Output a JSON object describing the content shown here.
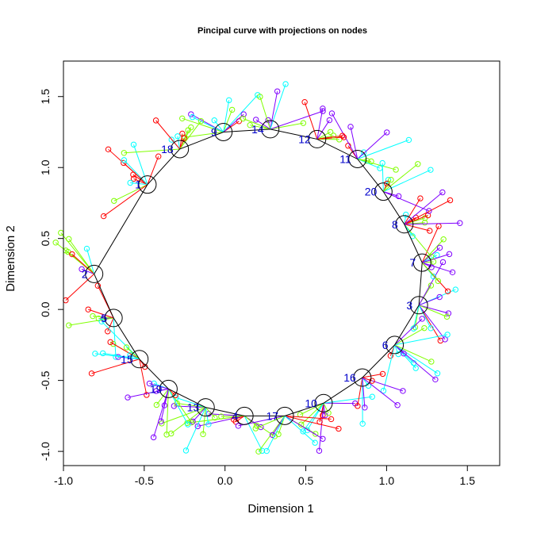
{
  "chart_data": {
    "type": "scatter",
    "title": "Pincipal curve with projections on nodes",
    "xlabel": "Dimension 1",
    "ylabel": "Dimension 2",
    "xlim": [
      -1.0,
      1.7
    ],
    "ylim": [
      -1.1,
      1.75
    ],
    "xticks": [
      "-1.0",
      "-0.5",
      "0.0",
      "0.5",
      "1.0",
      "1.5"
    ],
    "yticks": [
      "-1.0",
      "-0.5",
      "0.0",
      "0.5",
      "1.0",
      "1.5"
    ],
    "grid": false,
    "projection_colors": [
      "#ff0000",
      "#80ff00",
      "#00ffff",
      "#8000ff"
    ],
    "curve_order": [
      9,
      14,
      12,
      11,
      20,
      8,
      7,
      3,
      6,
      16,
      10,
      17,
      4,
      13,
      19,
      15,
      5,
      2,
      1,
      18,
      9
    ],
    "nodes": [
      {
        "label": "1",
        "x": -0.48,
        "y": 0.88
      },
      {
        "label": "2",
        "x": -0.81,
        "y": 0.25
      },
      {
        "label": "3",
        "x": 1.2,
        "y": 0.03
      },
      {
        "label": "4",
        "x": 0.12,
        "y": -0.75
      },
      {
        "label": "5",
        "x": -0.69,
        "y": -0.06
      },
      {
        "label": "6",
        "x": 1.05,
        "y": -0.25
      },
      {
        "label": "7",
        "x": 1.22,
        "y": 0.33
      },
      {
        "label": "8",
        "x": 1.11,
        "y": 0.6
      },
      {
        "label": "9",
        "x": -0.01,
        "y": 1.25
      },
      {
        "label": "10",
        "x": 0.61,
        "y": -0.66
      },
      {
        "label": "11",
        "x": 0.82,
        "y": 1.06
      },
      {
        "label": "12",
        "x": 0.57,
        "y": 1.2
      },
      {
        "label": "13",
        "x": -0.12,
        "y": -0.69
      },
      {
        "label": "14",
        "x": 0.28,
        "y": 1.27
      },
      {
        "label": "15",
        "x": -0.53,
        "y": -0.35
      },
      {
        "label": "16",
        "x": 0.85,
        "y": -0.48
      },
      {
        "label": "17",
        "x": 0.37,
        "y": -0.75
      },
      {
        "label": "18",
        "x": -0.28,
        "y": 1.13
      },
      {
        "label": "19",
        "x": -0.35,
        "y": -0.56
      },
      {
        "label": "20",
        "x": 0.98,
        "y": 0.83
      }
    ]
  }
}
